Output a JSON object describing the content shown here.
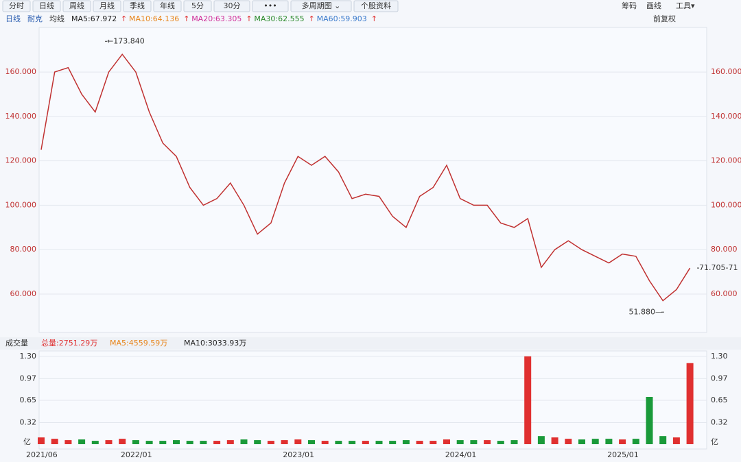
{
  "toolbar": {
    "tabs": [
      "分时",
      "日线",
      "周线",
      "月线",
      "季线",
      "年线",
      "5分",
      "30分",
      "•••",
      "多周期图 ⌄",
      "个股资料"
    ],
    "right": [
      "筹码",
      "画线",
      "工具▾"
    ]
  },
  "legend": {
    "items": [
      {
        "text": "日线",
        "color": "#2a5db0"
      },
      {
        "text": "耐克",
        "color": "#2a5db0"
      },
      {
        "text": "均线",
        "color": "#333333"
      },
      {
        "text": "MA5:67.972",
        "color": "#222222"
      },
      {
        "text": "MA10:64.136",
        "color": "#e8851a"
      },
      {
        "text": "MA20:63.305",
        "color": "#d0309a"
      },
      {
        "text": "MA30:62.555",
        "color": "#2a8a2a"
      },
      {
        "text": "MA60:59.903",
        "color": "#3a7acc"
      }
    ],
    "adjust": "前复权"
  },
  "volume_legend": {
    "items": [
      {
        "text": "成交量",
        "color": "#333333"
      },
      {
        "text": "总量:2751.29万",
        "color": "#e03030"
      },
      {
        "text": "MA5:4559.59万",
        "color": "#e8851a"
      },
      {
        "text": "MA10:3033.93万",
        "color": "#222222"
      }
    ]
  },
  "chart_data": [
    {
      "type": "line",
      "name": "price",
      "color": "#c03030",
      "categories": [
        "2021/06",
        null,
        null,
        null,
        null,
        null,
        null,
        "2022/01",
        null,
        null,
        null,
        null,
        null,
        null,
        null,
        null,
        null,
        null,
        null,
        "2023/01",
        null,
        null,
        null,
        null,
        null,
        null,
        null,
        null,
        null,
        null,
        null,
        "2024/01",
        null,
        null,
        null,
        null,
        null,
        null,
        null,
        null,
        null,
        null,
        null,
        "2025/01",
        null,
        null,
        null,
        null,
        null
      ],
      "values": [
        125,
        160,
        162,
        150,
        142,
        160,
        168,
        160,
        142,
        128,
        122,
        108,
        100,
        103,
        110,
        100,
        87,
        92,
        110,
        122,
        118,
        122,
        115,
        103,
        105,
        104,
        95,
        90,
        104,
        108,
        118,
        103,
        100,
        100,
        92,
        90,
        94,
        72,
        80,
        84,
        80,
        77,
        74,
        78,
        77,
        66,
        57,
        62,
        71.705
      ],
      "ylim": [
        42.7,
        180.1
      ],
      "yticks": [
        {
          "value": 60,
          "label": "60.000"
        },
        {
          "value": 80,
          "label": "80.000"
        },
        {
          "value": 100,
          "label": "100.000"
        },
        {
          "value": 120,
          "label": "120.000"
        },
        {
          "value": 140,
          "label": "140.000"
        },
        {
          "value": 160,
          "label": "160.000"
        }
      ],
      "high": {
        "value": 173.84,
        "label": "←173.840"
      },
      "low": {
        "value": 51.88,
        "label": "51.880—"
      },
      "last": {
        "value": 71.705,
        "label": "71.705-71"
      },
      "grid": true
    },
    {
      "type": "bar",
      "name": "volume",
      "up_color": "#e03030",
      "down_color": "#1a9a3a",
      "values": [
        0.1,
        0.08,
        0.06,
        0.07,
        0.05,
        0.06,
        0.08,
        0.06,
        0.05,
        0.05,
        0.06,
        0.05,
        0.05,
        0.05,
        0.06,
        0.07,
        0.06,
        0.05,
        0.06,
        0.07,
        0.06,
        0.05,
        0.05,
        0.05,
        0.05,
        0.05,
        0.05,
        0.06,
        0.05,
        0.05,
        0.07,
        0.06,
        0.06,
        0.06,
        0.05,
        0.06,
        1.3,
        0.12,
        0.1,
        0.08,
        0.07,
        0.08,
        0.08,
        0.07,
        0.08,
        0.7,
        0.12,
        0.1,
        1.2
      ],
      "ylim": [
        0,
        1.38
      ],
      "yticks": [
        {
          "value": 0.32,
          "label": "0.32"
        },
        {
          "value": 0.65,
          "label": "0.65"
        },
        {
          "value": 0.97,
          "label": "0.97"
        },
        {
          "value": 1.3,
          "label": "1.30"
        }
      ],
      "unit_label": "亿",
      "grid": true
    }
  ]
}
